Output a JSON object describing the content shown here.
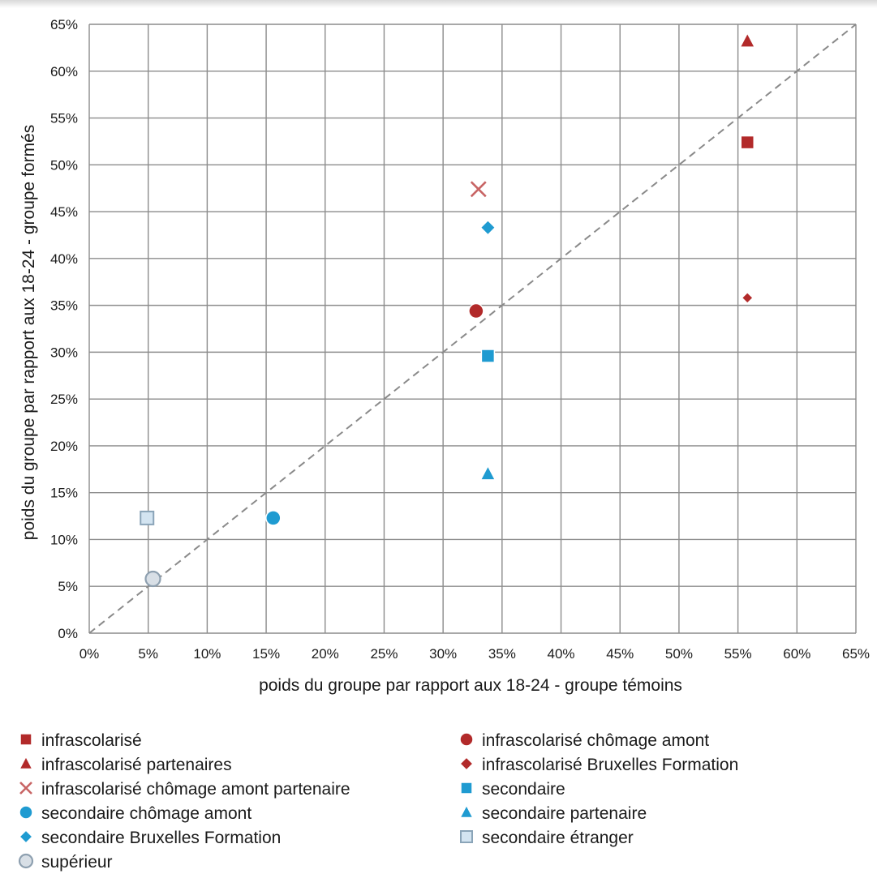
{
  "chart_data": {
    "type": "scatter",
    "title": "",
    "xlabel": "poids du groupe par rapport aux 18-24 - groupe témoins",
    "ylabel": "poids du groupe par rapport aux 18-24 - groupe formés",
    "xlim": [
      0,
      65
    ],
    "ylim": [
      0,
      65
    ],
    "x_ticks": [
      0,
      5,
      10,
      15,
      20,
      25,
      30,
      35,
      40,
      45,
      50,
      55,
      60,
      65
    ],
    "y_ticks": [
      0,
      5,
      10,
      15,
      20,
      25,
      30,
      35,
      40,
      45,
      50,
      55,
      60,
      65
    ],
    "tick_suffix": "%",
    "grid": true,
    "diagonal_reference": true,
    "legend_position": "bottom",
    "series": [
      {
        "name": "infrascolarisé",
        "marker": "square",
        "color": "#b22a2a",
        "x": 55.8,
        "y": 52.4
      },
      {
        "name": "infrascolarisé chômage amont",
        "marker": "circle",
        "color": "#b22a2a",
        "x": 32.8,
        "y": 34.4
      },
      {
        "name": "infrascolarisé partenaires",
        "marker": "triangle",
        "color": "#b22a2a",
        "x": 55.8,
        "y": 63.2
      },
      {
        "name": "infrascolarisé Bruxelles Formation",
        "marker": "diamond",
        "color": "#b22a2a",
        "x": 55.8,
        "y": 35.8
      },
      {
        "name": "infrascolarisé chômage amont partenaire",
        "marker": "x",
        "color": "#c86464",
        "x": 33.0,
        "y": 47.4
      },
      {
        "name": "secondaire",
        "marker": "square",
        "color": "#1f9bd1",
        "x": 33.8,
        "y": 29.6
      },
      {
        "name": "secondaire chômage amont",
        "marker": "circle",
        "color": "#1f9bd1",
        "x": 15.6,
        "y": 12.3
      },
      {
        "name": "secondaire partenaire",
        "marker": "triangle",
        "color": "#1f9bd1",
        "x": 33.8,
        "y": 17.0
      },
      {
        "name": "secondaire Bruxelles Formation",
        "marker": "diamond",
        "color": "#1f9bd1",
        "x": 33.8,
        "y": 43.3
      },
      {
        "name": "secondaire étranger",
        "marker": "square-outline",
        "color": "#a9cde6",
        "x": 4.9,
        "y": 12.3
      },
      {
        "name": "supérieur",
        "marker": "circle-outline",
        "color": "#c6d0da",
        "x": 5.4,
        "y": 5.8
      }
    ]
  }
}
